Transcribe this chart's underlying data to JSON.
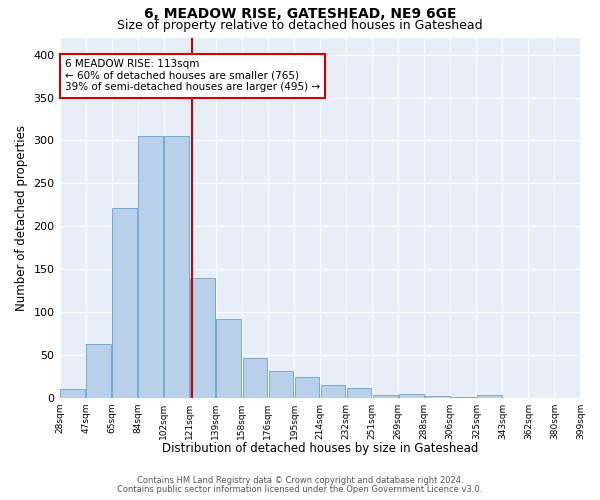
{
  "title": "6, MEADOW RISE, GATESHEAD, NE9 6GE",
  "subtitle": "Size of property relative to detached houses in Gateshead",
  "xlabel": "Distribution of detached houses by size in Gateshead",
  "ylabel": "Number of detached properties",
  "bar_values": [
    10,
    63,
    221,
    305,
    305,
    140,
    92,
    47,
    32,
    25,
    15,
    12,
    4,
    5,
    2,
    1,
    4,
    0,
    0,
    0
  ],
  "bar_labels": [
    "28sqm",
    "47sqm",
    "65sqm",
    "84sqm",
    "102sqm",
    "121sqm",
    "139sqm",
    "158sqm",
    "176sqm",
    "195sqm",
    "214sqm",
    "232sqm",
    "251sqm",
    "269sqm",
    "288sqm",
    "306sqm",
    "325sqm",
    "343sqm",
    "362sqm",
    "380sqm",
    "399sqm"
  ],
  "bar_color": "#b8d0ea",
  "bar_edge_color": "#7aabcf",
  "annotation_title": "6 MEADOW RISE: 113sqm",
  "annotation_line1": "← 60% of detached houses are smaller (765)",
  "annotation_line2": "39% of semi-detached houses are larger (495) →",
  "annotation_box_color": "#ffffff",
  "annotation_border_color": "#cc0000",
  "vline_color": "#cc0000",
  "ylim": [
    0,
    420
  ],
  "yticks": [
    0,
    50,
    100,
    150,
    200,
    250,
    300,
    350,
    400
  ],
  "background_color": "#e8eef8",
  "footer_line1": "Contains HM Land Registry data © Crown copyright and database right 2024.",
  "footer_line2": "Contains public sector information licensed under the Open Government Licence v3.0.",
  "title_fontsize": 10,
  "subtitle_fontsize": 9,
  "xlabel_fontsize": 8.5,
  "ylabel_fontsize": 8.5,
  "annotation_fontsize": 7.5,
  "footer_fontsize": 6.0
}
